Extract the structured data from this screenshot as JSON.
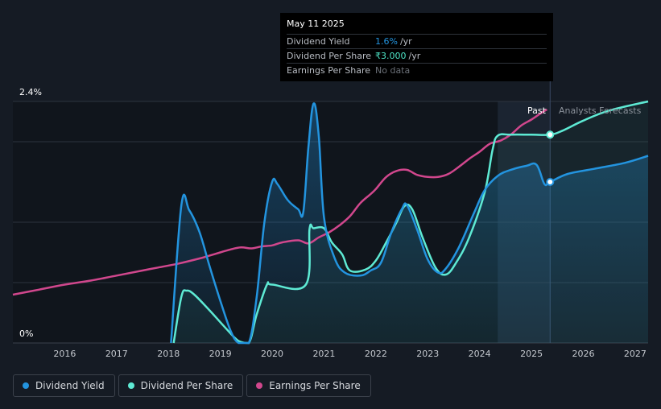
{
  "tooltip": {
    "date": "May 11 2025",
    "rows": [
      {
        "label": "Dividend Yield",
        "value": "1.6%",
        "unit": "/yr",
        "color": "#2394df"
      },
      {
        "label": "Dividend Per Share",
        "value": "₹3.000",
        "unit": "/yr",
        "color": "#4de3c5"
      },
      {
        "label": "Earnings Per Share",
        "value": "No data",
        "unit": "",
        "color": "#6b7078"
      }
    ]
  },
  "regions": {
    "past": "Past",
    "forecast": "Analysts Forecasts"
  },
  "legend": [
    {
      "label": "Dividend Yield",
      "color": "#2394df"
    },
    {
      "label": "Dividend Per Share",
      "color": "#5eead4"
    },
    {
      "label": "Earnings Per Share",
      "color": "#d1478d"
    }
  ],
  "chart_data": {
    "type": "line",
    "x_ticks": [
      "2016",
      "2017",
      "2018",
      "2019",
      "2020",
      "2021",
      "2022",
      "2023",
      "2024",
      "2025",
      "2026",
      "2027"
    ],
    "y_tick_labels": [
      "2.4%",
      "0%"
    ],
    "ylim": [
      0,
      2.4
    ],
    "xlim": [
      2015.0,
      2027.25
    ],
    "past_region": [
      2024.35,
      2025.36
    ],
    "series": [
      {
        "name": "Dividend Yield",
        "color": "#2394df",
        "points": [
          [
            2018.05,
            0
          ],
          [
            2018.25,
            1.37
          ],
          [
            2018.4,
            1.32
          ],
          [
            2018.6,
            1.1
          ],
          [
            2018.8,
            0.75
          ],
          [
            2019.0,
            0.42
          ],
          [
            2019.2,
            0.12
          ],
          [
            2019.35,
            0
          ],
          [
            2019.55,
            0
          ],
          [
            2019.7,
            0.45
          ],
          [
            2019.85,
            1.2
          ],
          [
            2020.0,
            1.6
          ],
          [
            2020.1,
            1.58
          ],
          [
            2020.3,
            1.42
          ],
          [
            2020.5,
            1.33
          ],
          [
            2020.6,
            1.3
          ],
          [
            2020.7,
            1.95
          ],
          [
            2020.8,
            2.38
          ],
          [
            2020.9,
            2.05
          ],
          [
            2021.0,
            1.25
          ],
          [
            2021.2,
            0.85
          ],
          [
            2021.4,
            0.7
          ],
          [
            2021.7,
            0.67
          ],
          [
            2021.9,
            0.72
          ],
          [
            2022.1,
            0.8
          ],
          [
            2022.3,
            1.1
          ],
          [
            2022.5,
            1.33
          ],
          [
            2022.6,
            1.37
          ],
          [
            2022.8,
            1.12
          ],
          [
            2023.0,
            0.83
          ],
          [
            2023.2,
            0.7
          ],
          [
            2023.35,
            0.74
          ],
          [
            2023.6,
            0.95
          ],
          [
            2023.9,
            1.3
          ],
          [
            2024.1,
            1.52
          ],
          [
            2024.35,
            1.66
          ],
          [
            2024.6,
            1.72
          ],
          [
            2024.9,
            1.76
          ],
          [
            2025.1,
            1.77
          ],
          [
            2025.25,
            1.58
          ],
          [
            2025.36,
            1.6
          ],
          [
            2025.7,
            1.68
          ],
          [
            2026.2,
            1.73
          ],
          [
            2026.8,
            1.79
          ],
          [
            2027.25,
            1.86
          ]
        ]
      },
      {
        "name": "Dividend Per Share",
        "color": "#5eead4",
        "points": [
          [
            2018.1,
            0
          ],
          [
            2018.25,
            0.46
          ],
          [
            2018.35,
            0.52
          ],
          [
            2018.5,
            0.48
          ],
          [
            2018.8,
            0.32
          ],
          [
            2019.1,
            0.15
          ],
          [
            2019.35,
            0.02
          ],
          [
            2019.55,
            0
          ],
          [
            2019.7,
            0.28
          ],
          [
            2019.9,
            0.58
          ],
          [
            2020.0,
            0.58
          ],
          [
            2020.65,
            0.58
          ],
          [
            2020.72,
            1.13
          ],
          [
            2020.8,
            1.14
          ],
          [
            2021.0,
            1.14
          ],
          [
            2021.15,
            1.0
          ],
          [
            2021.35,
            0.88
          ],
          [
            2021.5,
            0.72
          ],
          [
            2021.8,
            0.73
          ],
          [
            2022.0,
            0.82
          ],
          [
            2022.2,
            1.0
          ],
          [
            2022.4,
            1.2
          ],
          [
            2022.55,
            1.36
          ],
          [
            2022.7,
            1.33
          ],
          [
            2022.9,
            1.05
          ],
          [
            2023.15,
            0.75
          ],
          [
            2023.35,
            0.68
          ],
          [
            2023.55,
            0.8
          ],
          [
            2023.8,
            1.05
          ],
          [
            2024.1,
            1.5
          ],
          [
            2024.25,
            1.92
          ],
          [
            2024.35,
            2.06
          ],
          [
            2024.6,
            2.07
          ],
          [
            2025.0,
            2.07
          ],
          [
            2025.36,
            2.07
          ],
          [
            2025.6,
            2.11
          ],
          [
            2026.0,
            2.21
          ],
          [
            2026.5,
            2.31
          ],
          [
            2027.25,
            2.4
          ]
        ]
      },
      {
        "name": "Earnings Per Share",
        "color": "#d1478d",
        "points": [
          [
            2015.0,
            0.48
          ],
          [
            2015.5,
            0.53
          ],
          [
            2016.0,
            0.58
          ],
          [
            2016.5,
            0.62
          ],
          [
            2017.0,
            0.67
          ],
          [
            2017.5,
            0.72
          ],
          [
            2017.8,
            0.75
          ],
          [
            2018.2,
            0.79
          ],
          [
            2018.6,
            0.84
          ],
          [
            2018.8,
            0.87
          ],
          [
            2019.0,
            0.9
          ],
          [
            2019.2,
            0.93
          ],
          [
            2019.4,
            0.95
          ],
          [
            2019.6,
            0.94
          ],
          [
            2019.8,
            0.96
          ],
          [
            2020.0,
            0.97
          ],
          [
            2020.2,
            1.0
          ],
          [
            2020.5,
            1.02
          ],
          [
            2020.7,
            0.99
          ],
          [
            2020.9,
            1.05
          ],
          [
            2021.1,
            1.1
          ],
          [
            2021.3,
            1.17
          ],
          [
            2021.5,
            1.26
          ],
          [
            2021.7,
            1.39
          ],
          [
            2021.9,
            1.48
          ],
          [
            2022.0,
            1.53
          ],
          [
            2022.2,
            1.65
          ],
          [
            2022.4,
            1.71
          ],
          [
            2022.6,
            1.72
          ],
          [
            2022.8,
            1.67
          ],
          [
            2023.0,
            1.65
          ],
          [
            2023.2,
            1.65
          ],
          [
            2023.4,
            1.68
          ],
          [
            2023.6,
            1.75
          ],
          [
            2023.8,
            1.83
          ],
          [
            2024.0,
            1.9
          ],
          [
            2024.2,
            1.98
          ],
          [
            2024.4,
            2.01
          ],
          [
            2024.6,
            2.07
          ],
          [
            2024.8,
            2.16
          ],
          [
            2025.0,
            2.22
          ],
          [
            2025.2,
            2.29
          ],
          [
            2025.3,
            2.32
          ]
        ]
      }
    ],
    "highlight_points": [
      {
        "series": "Dividend Yield",
        "x": 2025.36,
        "y": 1.6
      },
      {
        "series": "Dividend Per Share",
        "x": 2025.36,
        "y": 2.07
      }
    ]
  }
}
